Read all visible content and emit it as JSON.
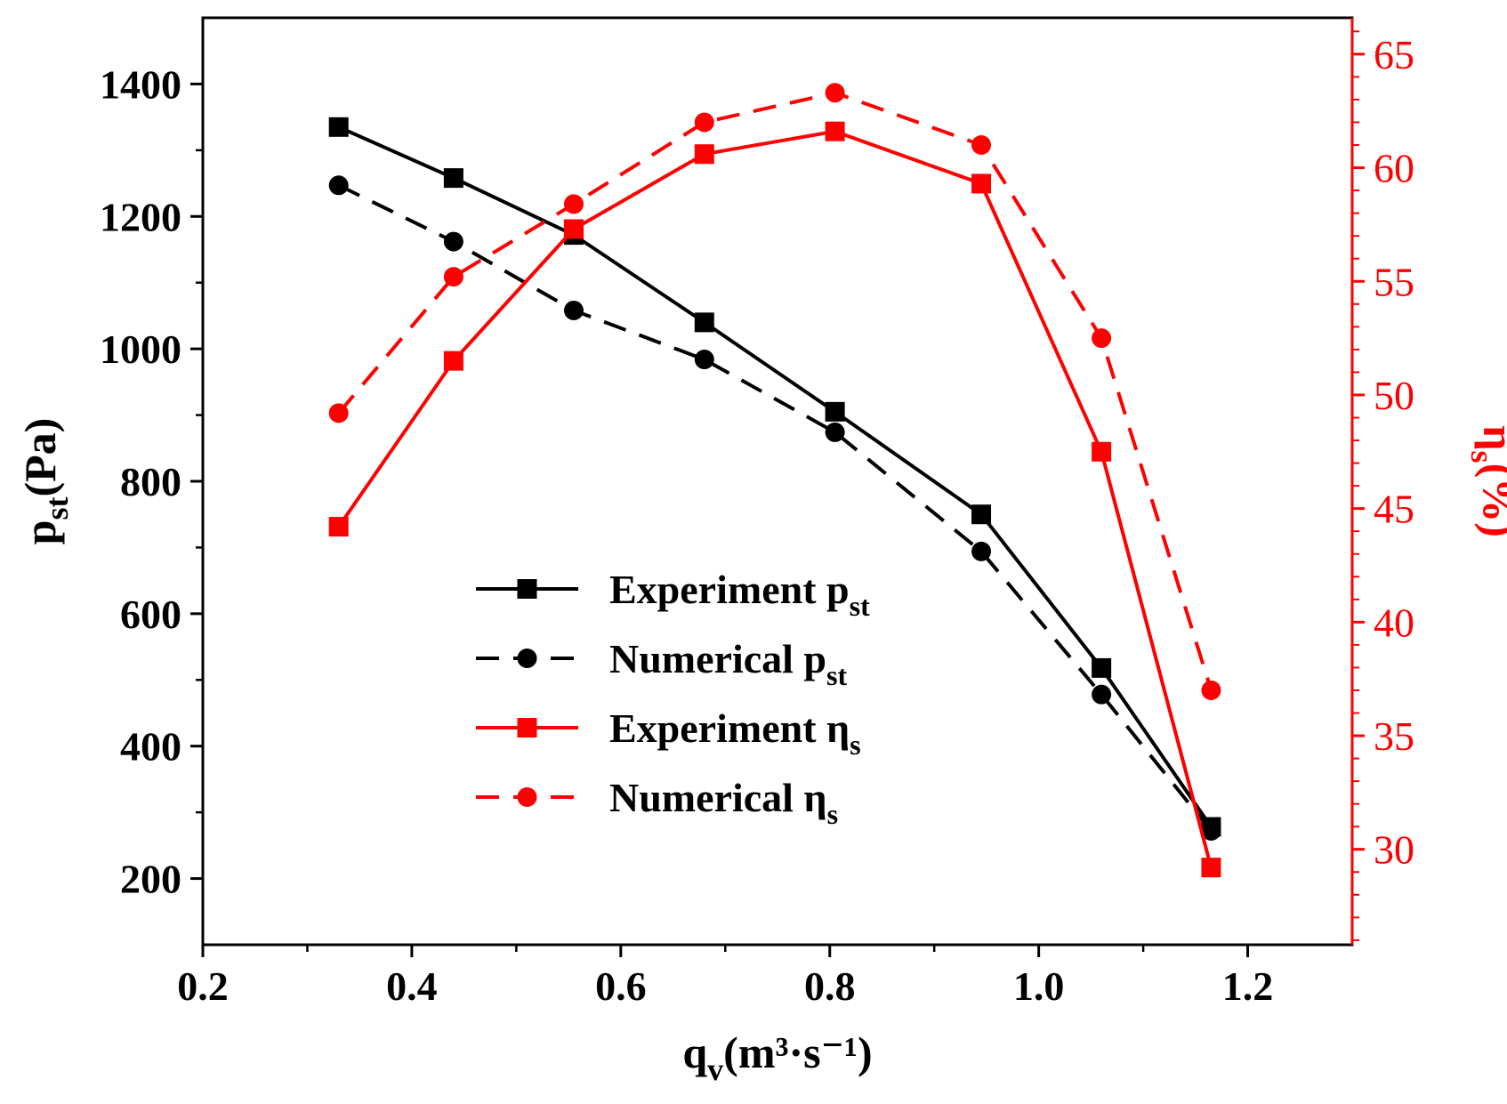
{
  "chart_data": {
    "type": "line",
    "x": [
      0.33,
      0.44,
      0.555,
      0.68,
      0.805,
      0.945,
      1.06,
      1.165
    ],
    "xlim": [
      0.2,
      1.3
    ],
    "x_ticks": [
      0.2,
      0.4,
      0.6,
      0.8,
      1.0,
      1.2
    ],
    "x_tick_labels": [
      "0.2",
      "0.4",
      "0.6",
      "0.8",
      "1.0",
      "1.2"
    ],
    "xlabel": {
      "main": "q",
      "sub": "v",
      "rest": "(m³·s⁻¹)"
    },
    "y_left": {
      "lim": [
        100,
        1500
      ],
      "ticks": [
        200,
        400,
        600,
        800,
        1000,
        1200,
        1400
      ],
      "tick_labels": [
        "200",
        "400",
        "600",
        "800",
        "1000",
        "1200",
        "1400"
      ],
      "label": {
        "main": "p",
        "sub": "st",
        "rest": "(Pa)"
      },
      "color": "#000000"
    },
    "y_right": {
      "lim": [
        25.8,
        66.6
      ],
      "ticks": [
        30,
        35,
        40,
        45,
        50,
        55,
        60,
        65
      ],
      "tick_labels": [
        "30",
        "35",
        "40",
        "45",
        "50",
        "55",
        "60",
        "65"
      ],
      "label": {
        "main": "η",
        "sub": "s",
        "rest": "(%)"
      },
      "color": "#ff0000"
    },
    "series": [
      {
        "name": "Experiment p",
        "sub": "st",
        "axis": "left",
        "color": "#000000",
        "dash": false,
        "marker": "square",
        "values": [
          1335,
          1258,
          1172,
          1040,
          905,
          750,
          518,
          278
        ]
      },
      {
        "name": "Numerical p",
        "sub": "st",
        "axis": "left",
        "color": "#000000",
        "dash": true,
        "marker": "circle",
        "values": [
          1247,
          1162,
          1058,
          984,
          874,
          694,
          478,
          272
        ]
      },
      {
        "name": "Experiment η",
        "sub": "s",
        "axis": "right",
        "color": "#ff0000",
        "dash": false,
        "marker": "square",
        "values": [
          44.2,
          51.5,
          57.3,
          60.6,
          61.6,
          59.3,
          47.5,
          29.2
        ]
      },
      {
        "name": "Numerical η",
        "sub": "s",
        "axis": "right",
        "color": "#ff0000",
        "dash": true,
        "marker": "circle",
        "values": [
          49.2,
          55.2,
          58.4,
          62.0,
          63.3,
          61.0,
          52.5,
          37.0
        ]
      }
    ],
    "legend_position": "lower-center",
    "grid": false
  }
}
